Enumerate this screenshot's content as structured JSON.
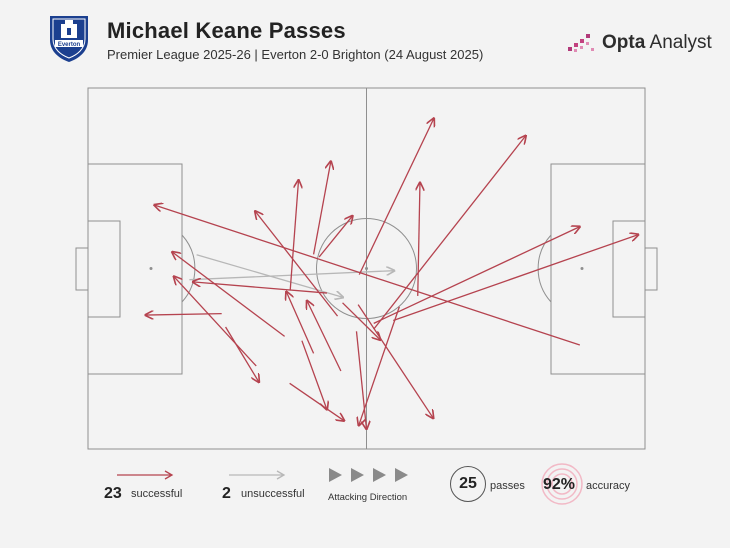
{
  "header": {
    "title": "Michael Keane Passes",
    "subtitle": "Premier League 2025-26 | Everton 2-0 Brighton (24 August 2025)",
    "crest_text": "Everton",
    "brand_bold": "Opta",
    "brand_light": "Analyst"
  },
  "colors": {
    "successful": "#b5434f",
    "unsuccessful": "#b7b7b7",
    "pitch_line": "#8f8f8f",
    "crest_blue": "#1b3f8f"
  },
  "legend": {
    "successful_count": "23",
    "successful_label": "successful",
    "unsuccessful_count": "2",
    "unsuccessful_label": "unsuccessful",
    "direction_label": "Attacking Direction",
    "passes_count": "25",
    "passes_label": "passes",
    "accuracy_value": "92%",
    "accuracy_label": "accuracy"
  },
  "chart_data": {
    "type": "scatter",
    "passes": [
      {
        "x1": 88.3,
        "y1": 71.2,
        "x2": 11.9,
        "y2": 32.4,
        "outcome": "successful"
      },
      {
        "x1": 48.7,
        "y1": 51.7,
        "x2": 62.1,
        "y2": 8.4,
        "outcome": "successful"
      },
      {
        "x1": 44.8,
        "y1": 63.2,
        "x2": 30.0,
        "y2": 34.1,
        "outcome": "successful"
      },
      {
        "x1": 40.5,
        "y1": 46.1,
        "x2": 43.6,
        "y2": 20.3,
        "outcome": "successful"
      },
      {
        "x1": 35.3,
        "y1": 68.8,
        "x2": 15.1,
        "y2": 45.4,
        "outcome": "successful"
      },
      {
        "x1": 42.9,
        "y1": 56.8,
        "x2": 18.8,
        "y2": 53.7,
        "outcome": "successful"
      },
      {
        "x1": 24.0,
        "y1": 62.5,
        "x2": 10.3,
        "y2": 62.9,
        "outcome": "successful"
      },
      {
        "x1": 24.7,
        "y1": 66.2,
        "x2": 30.7,
        "y2": 81.5,
        "outcome": "successful"
      },
      {
        "x1": 36.3,
        "y1": 56.1,
        "x2": 37.8,
        "y2": 25.5,
        "outcome": "successful"
      },
      {
        "x1": 41.5,
        "y1": 46.8,
        "x2": 47.5,
        "y2": 35.4,
        "outcome": "successful"
      },
      {
        "x1": 45.4,
        "y1": 78.4,
        "x2": 39.3,
        "y2": 58.9,
        "outcome": "successful"
      },
      {
        "x1": 30.2,
        "y1": 77.0,
        "x2": 15.4,
        "y2": 52.2,
        "outcome": "successful"
      },
      {
        "x1": 36.2,
        "y1": 81.8,
        "x2": 46.0,
        "y2": 92.2,
        "outcome": "successful"
      },
      {
        "x1": 40.5,
        "y1": 73.5,
        "x2": 35.6,
        "y2": 56.4,
        "outcome": "successful"
      },
      {
        "x1": 45.7,
        "y1": 59.5,
        "x2": 52.5,
        "y2": 69.8,
        "outcome": "successful"
      },
      {
        "x1": 38.4,
        "y1": 70.0,
        "x2": 42.9,
        "y2": 89.1,
        "outcome": "successful"
      },
      {
        "x1": 48.5,
        "y1": 60.0,
        "x2": 62.0,
        "y2": 91.5,
        "outcome": "successful"
      },
      {
        "x1": 55.9,
        "y1": 60.6,
        "x2": 48.6,
        "y2": 93.5,
        "outcome": "successful"
      },
      {
        "x1": 48.2,
        "y1": 67.4,
        "x2": 50.0,
        "y2": 94.5,
        "outcome": "successful"
      },
      {
        "x1": 59.2,
        "y1": 57.6,
        "x2": 59.6,
        "y2": 26.2,
        "outcome": "successful"
      },
      {
        "x1": 51.3,
        "y1": 66.8,
        "x2": 78.6,
        "y2": 13.2,
        "outcome": "successful"
      },
      {
        "x1": 51.3,
        "y1": 65.2,
        "x2": 88.3,
        "y2": 38.4,
        "outcome": "successful"
      },
      {
        "x1": 54.8,
        "y1": 64.4,
        "x2": 98.8,
        "y2": 40.6,
        "outcome": "successful"
      },
      {
        "x1": 19.5,
        "y1": 46.2,
        "x2": 45.8,
        "y2": 58.0,
        "outcome": "unsuccessful"
      },
      {
        "x1": 18.2,
        "y1": 53.1,
        "x2": 55.0,
        "y2": 50.6,
        "outcome": "unsuccessful"
      }
    ],
    "pitch": {
      "x_range": [
        0,
        100
      ],
      "y_range": [
        0,
        100
      ]
    }
  }
}
